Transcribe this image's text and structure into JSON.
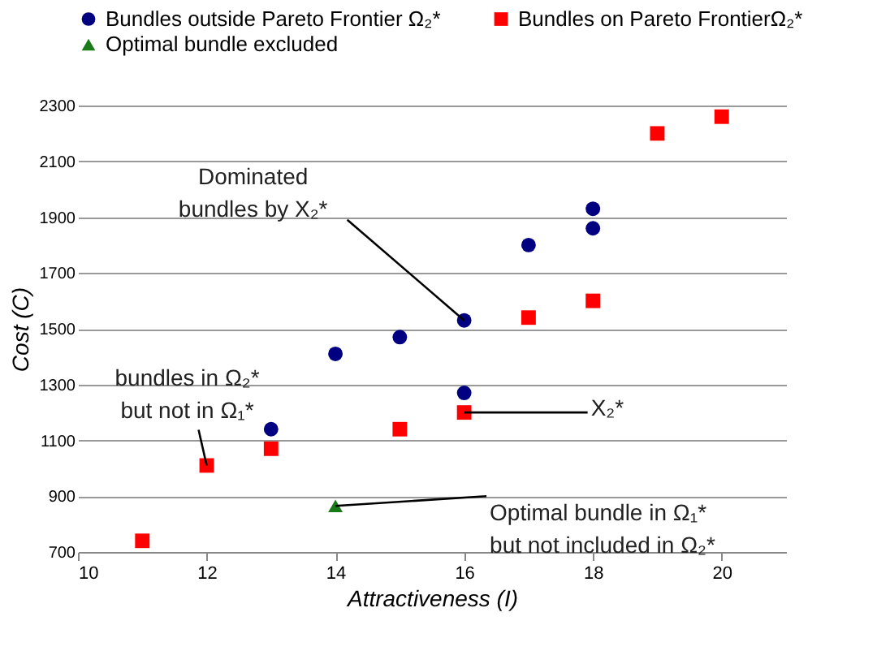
{
  "chart_data": {
    "type": "scatter",
    "xlabel": "Attractiveness (I)",
    "ylabel": "Cost (C)",
    "xlim": [
      10,
      21
    ],
    "xticks": [
      10,
      12,
      14,
      16,
      18,
      20
    ],
    "ylim": [
      700,
      2300
    ],
    "yticks": [
      700,
      900,
      1100,
      1300,
      1500,
      1700,
      1900,
      2100,
      2300
    ],
    "grid": "y",
    "legend": "top",
    "series": [
      {
        "name": "Bundles outside Pareto Frontier Ω₂*",
        "color": "#000080",
        "marker": "circle",
        "x": [
          13,
          14,
          15,
          16,
          16,
          17,
          18,
          18
        ],
        "values": [
          1140,
          1410,
          1470,
          1530,
          1270,
          1800,
          1930,
          1860
        ]
      },
      {
        "name": "Bundles on Pareto FrontierΩ₂*",
        "color": "#ff0000",
        "marker": "square",
        "x": [
          11,
          12,
          13,
          15,
          16,
          17,
          18,
          19,
          20
        ],
        "values": [
          740,
          1010,
          1070,
          1140,
          1200,
          1540,
          1600,
          2200,
          2260
        ]
      },
      {
        "name": "Optimal bundle excluded",
        "color": "#1a7a1a",
        "marker": "triangle",
        "x": [
          14
        ],
        "values": [
          865
        ]
      }
    ],
    "annotations": [
      {
        "text": "Dominated\nbundles by X₂*",
        "x": 16,
        "y": 1530
      },
      {
        "text": "bundles in Ω₂*\nbut not in Ω₁*",
        "x": 12,
        "y": 1010
      },
      {
        "text": "X₂*",
        "x": 16,
        "y": 1200
      },
      {
        "text": "Optimal bundle in Ω₁*\nbut not included in Ω₂*",
        "x": 14,
        "y": 865
      }
    ]
  }
}
